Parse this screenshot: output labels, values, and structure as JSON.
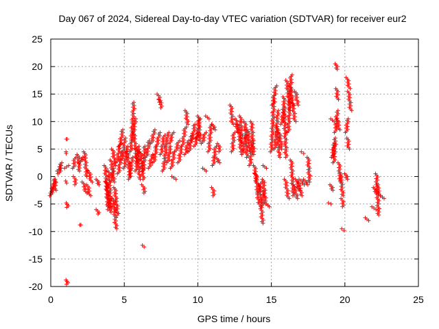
{
  "chart_data": {
    "type": "scatter",
    "title": "Day 067 of 2024, Sidereal Day-to-day VTEC variation (SDTVAR) for receiver eur2",
    "xlabel": "GPS time / hours",
    "ylabel": "SDTVAR / TECUs",
    "xlim": [
      0,
      25
    ],
    "ylim": [
      -20,
      25
    ],
    "xticks": [
      0,
      5,
      10,
      15,
      20,
      25
    ],
    "yticks": [
      -20,
      -15,
      -10,
      -5,
      0,
      5,
      10,
      15,
      20,
      25
    ],
    "grid": true,
    "marker": "+",
    "color": "#ff0000",
    "segments": [
      [
        0.0,
        -3.5,
        0.3,
        -0.5
      ],
      [
        0.05,
        -3.0,
        0.28,
        -1.0
      ],
      [
        0.3,
        -0.5,
        0.3,
        -2.5
      ],
      [
        0.5,
        1.0,
        0.75,
        2.5
      ],
      [
        0.55,
        0.5,
        0.7,
        1.8
      ],
      [
        1.0,
        1.5,
        1.15,
        2.0
      ],
      [
        1.1,
        4.5,
        1.05,
        4.2
      ],
      [
        1.12,
        6.8,
        1.12,
        6.8
      ],
      [
        1.08,
        -0.8,
        1.08,
        -1.2
      ],
      [
        1.12,
        -4.8,
        1.12,
        -5.6
      ],
      [
        1.1,
        -18.8,
        1.1,
        -19.6
      ],
      [
        1.55,
        1.5,
        1.65,
        3.5
      ],
      [
        1.6,
        0.0,
        1.7,
        -1.5
      ],
      [
        1.85,
        4.0,
        1.95,
        1.0
      ],
      [
        2.0,
        2.5,
        2.15,
        3.5
      ],
      [
        2.2,
        -1.0,
        2.4,
        -3.0
      ],
      [
        2.3,
        4.5,
        2.45,
        0.0
      ],
      [
        2.05,
        -8.8,
        2.05,
        -8.8
      ],
      [
        2.5,
        -1.5,
        2.65,
        -3.5
      ],
      [
        2.6,
        1.0,
        2.75,
        -1.0
      ],
      [
        3.15,
        -0.5,
        3.25,
        -1.5
      ],
      [
        3.15,
        -6.0,
        3.25,
        -6.8
      ],
      [
        3.7,
        2.0,
        3.9,
        -6.0
      ],
      [
        3.8,
        -1.0,
        4.0,
        -5.5
      ],
      [
        3.95,
        1.0,
        4.1,
        -6.5
      ],
      [
        4.1,
        3.0,
        4.3,
        -1.0
      ],
      [
        4.25,
        -4.0,
        4.45,
        -9.5
      ],
      [
        4.35,
        -2.0,
        4.55,
        -7.0
      ],
      [
        4.2,
        5.0,
        4.4,
        2.0
      ],
      [
        4.5,
        2.5,
        4.7,
        6.0
      ],
      [
        4.6,
        0.5,
        4.8,
        4.5
      ],
      [
        4.7,
        5.5,
        4.9,
        8.5
      ],
      [
        4.85,
        3.0,
        5.05,
        7.0
      ],
      [
        4.1,
        -1.0,
        4.25,
        1.5
      ],
      [
        5.0,
        1.5,
        5.2,
        5.5
      ],
      [
        5.2,
        4.5,
        5.4,
        0.0
      ],
      [
        5.35,
        -0.5,
        5.55,
        3.5
      ],
      [
        5.45,
        4.5,
        5.65,
        13.5
      ],
      [
        5.55,
        6.5,
        5.75,
        10.5
      ],
      [
        5.65,
        8.0,
        5.85,
        2.5
      ],
      [
        5.8,
        1.0,
        6.0,
        5.5
      ],
      [
        5.9,
        5.0,
        6.05,
        -0.5
      ],
      [
        6.1,
        4.5,
        6.3,
        -0.5
      ],
      [
        6.25,
        -1.5,
        6.4,
        -3.0
      ],
      [
        6.3,
        1.0,
        6.4,
        5.5
      ],
      [
        6.3,
        -12.5,
        6.35,
        -12.8
      ],
      [
        6.5,
        3.5,
        6.7,
        6.5
      ],
      [
        6.7,
        1.5,
        6.9,
        4.0
      ],
      [
        6.85,
        6.0,
        7.05,
        8.5
      ],
      [
        7.0,
        2.5,
        7.2,
        5.5
      ],
      [
        7.2,
        5.5,
        7.4,
        8.0
      ],
      [
        7.3,
        15.0,
        7.45,
        13.5
      ],
      [
        7.4,
        14.0,
        7.55,
        12.5
      ],
      [
        7.5,
        4.0,
        7.7,
        7.5
      ],
      [
        7.65,
        1.0,
        7.85,
        5.5
      ],
      [
        7.8,
        5.5,
        8.0,
        8.0
      ],
      [
        7.95,
        2.5,
        8.15,
        5.5
      ],
      [
        8.1,
        6.0,
        8.3,
        8.0
      ],
      [
        8.2,
        1.5,
        8.4,
        4.5
      ],
      [
        8.3,
        0.0,
        8.45,
        -0.5
      ],
      [
        8.5,
        4.5,
        8.7,
        6.5
      ],
      [
        8.7,
        2.5,
        8.9,
        5.5
      ],
      [
        8.95,
        5.5,
        9.15,
        9.0
      ],
      [
        9.15,
        4.0,
        9.35,
        6.5
      ],
      [
        9.2,
        12.0,
        9.3,
        9.5
      ],
      [
        9.4,
        4.5,
        9.6,
        7.5
      ],
      [
        9.6,
        6.5,
        9.8,
        9.5
      ],
      [
        9.8,
        5.5,
        10.0,
        8.0
      ],
      [
        9.95,
        7.0,
        10.1,
        10.5
      ],
      [
        10.05,
        11.0,
        10.15,
        6.5
      ],
      [
        10.3,
        6.0,
        10.5,
        8.0
      ],
      [
        10.4,
        1.5,
        10.5,
        1.0
      ],
      [
        10.6,
        11.0,
        10.7,
        10.5
      ],
      [
        10.75,
        4.5,
        10.9,
        9.5
      ],
      [
        11.0,
        9.5,
        11.15,
        8.5
      ],
      [
        11.0,
        -2.0,
        11.1,
        -3.5
      ],
      [
        11.05,
        2.0,
        11.2,
        5.5
      ],
      [
        11.25,
        3.5,
        11.45,
        2.5
      ],
      [
        11.4,
        6.0,
        11.5,
        4.5
      ],
      [
        12.25,
        13.0,
        12.35,
        9.5
      ],
      [
        12.35,
        4.5,
        12.45,
        8.0
      ],
      [
        12.6,
        10.5,
        12.7,
        8.0
      ],
      [
        12.75,
        9.5,
        12.95,
        4.5
      ],
      [
        12.9,
        11.0,
        13.0,
        6.0
      ],
      [
        13.05,
        4.0,
        13.25,
        7.5
      ],
      [
        13.2,
        10.0,
        13.35,
        3.5
      ],
      [
        13.4,
        8.5,
        13.55,
        4.5
      ],
      [
        13.55,
        2.0,
        13.7,
        6.5
      ],
      [
        13.65,
        10.0,
        13.8,
        4.0
      ],
      [
        13.85,
        2.0,
        14.0,
        -1.0
      ],
      [
        13.95,
        0.5,
        14.15,
        -5.0
      ],
      [
        14.1,
        -3.0,
        14.3,
        -1.0
      ],
      [
        14.2,
        -1.5,
        14.4,
        -8.5
      ],
      [
        14.35,
        -5.5,
        14.5,
        -2.5
      ],
      [
        14.45,
        -0.5,
        14.6,
        -5.0
      ],
      [
        14.5,
        2.0,
        14.6,
        1.5
      ],
      [
        14.75,
        -5.0,
        14.8,
        -5.5
      ],
      [
        15.0,
        4.5,
        15.2,
        15.0
      ],
      [
        15.1,
        13.0,
        15.3,
        16.5
      ],
      [
        15.25,
        5.0,
        15.45,
        12.0
      ],
      [
        15.4,
        9.0,
        15.55,
        3.5
      ],
      [
        15.55,
        8.0,
        15.7,
        5.0
      ],
      [
        15.7,
        9.5,
        15.85,
        12.5
      ],
      [
        15.85,
        14.5,
        16.0,
        3.5
      ],
      [
        15.95,
        -0.5,
        16.15,
        -4.0
      ],
      [
        16.05,
        17.5,
        16.25,
        12.0
      ],
      [
        16.15,
        8.0,
        16.35,
        18.5
      ],
      [
        16.3,
        16.5,
        16.45,
        13.0
      ],
      [
        16.35,
        3.0,
        16.5,
        -3.5
      ],
      [
        16.45,
        13.5,
        16.6,
        10.0
      ],
      [
        16.55,
        -1.5,
        16.75,
        -4.0
      ],
      [
        16.65,
        15.5,
        16.8,
        13.0
      ],
      [
        16.7,
        -0.5,
        16.9,
        -2.5
      ],
      [
        16.85,
        -1.0,
        17.05,
        -3.5
      ],
      [
        16.95,
        -0.5,
        17.2,
        -1.5
      ],
      [
        17.1,
        4.5,
        17.2,
        4.2
      ],
      [
        17.25,
        -0.5,
        17.45,
        -1.5
      ],
      [
        17.5,
        3.5,
        17.6,
        -1.0
      ],
      [
        18.95,
        -4.8,
        19.05,
        -5.0
      ],
      [
        19.05,
        -1.5,
        19.15,
        -2.5
      ],
      [
        19.1,
        10.5,
        19.2,
        10.0
      ],
      [
        19.15,
        3.5,
        19.25,
        6.0
      ],
      [
        19.25,
        2.5,
        19.35,
        7.0
      ],
      [
        19.35,
        8.0,
        19.5,
        12.0
      ],
      [
        19.4,
        20.5,
        19.45,
        19.5
      ],
      [
        19.45,
        16.0,
        19.5,
        14.0
      ],
      [
        19.5,
        10.5,
        19.6,
        8.5
      ],
      [
        19.6,
        2.5,
        19.7,
        -1.0
      ],
      [
        19.7,
        0.5,
        19.85,
        -3.5
      ],
      [
        19.8,
        -4.0,
        19.9,
        -5.5
      ],
      [
        19.85,
        -9.5,
        19.95,
        -9.8
      ],
      [
        20.05,
        0.5,
        20.15,
        -0.5
      ],
      [
        20.1,
        8.0,
        20.2,
        10.5
      ],
      [
        20.15,
        18.0,
        20.3,
        16.0
      ],
      [
        20.25,
        15.5,
        20.4,
        12.0
      ],
      [
        20.2,
        7.0,
        20.25,
        5.0
      ],
      [
        21.45,
        -7.5,
        21.55,
        -8.0
      ],
      [
        21.9,
        -5.5,
        22.05,
        -6.0
      ],
      [
        22.0,
        -2.0,
        22.1,
        -3.0
      ],
      [
        22.15,
        0.5,
        22.3,
        -7.0
      ],
      [
        22.2,
        -1.5,
        22.35,
        -3.5
      ],
      [
        22.5,
        -3.5,
        22.6,
        -4.0
      ]
    ]
  }
}
